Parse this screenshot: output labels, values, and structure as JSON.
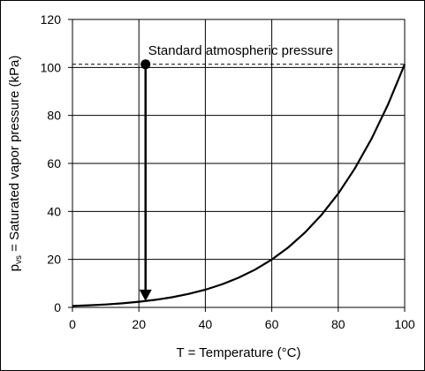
{
  "chart_data": {
    "type": "line",
    "xlabel": "T = Temperature (°C)",
    "ylabel_prefix": "p",
    "ylabel_sub": "vs",
    "ylabel_rest": " = Saturated vapor pressure (kPa)",
    "xlim": [
      0,
      100
    ],
    "ylim": [
      0,
      120
    ],
    "x_ticks": [
      "0",
      "20",
      "40",
      "60",
      "80",
      "100"
    ],
    "y_ticks": [
      "0",
      "20",
      "40",
      "60",
      "80",
      "100",
      "120"
    ],
    "grid": true,
    "series": [
      {
        "x": [
          0,
          5,
          10,
          15,
          20,
          25,
          30,
          35,
          40,
          45,
          50,
          55,
          60,
          65,
          70,
          75,
          80,
          85,
          90,
          95,
          100
        ],
        "y": [
          0.61,
          0.87,
          1.23,
          1.71,
          2.34,
          3.17,
          4.25,
          5.63,
          7.38,
          9.59,
          12.35,
          15.76,
          19.95,
          25.04,
          31.2,
          38.6,
          47.4,
          57.9,
          70.2,
          84.6,
          101.3
        ]
      }
    ],
    "reference_line": {
      "y": 101.3,
      "style": "dashed"
    },
    "annotation": {
      "text": "Standard atmospheric pressure",
      "arrow_x": 22,
      "arrow_from_y": 101.3,
      "arrow_to_y": 2.64
    }
  }
}
